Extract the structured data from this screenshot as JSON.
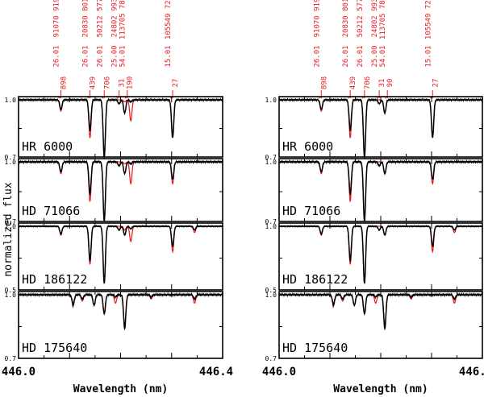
{
  "chart_data": {
    "type": "line",
    "y_axis_label": "normalized flux",
    "x_axis_label": "Wavelength (nm)",
    "x_range": [
      446.0,
      446.4
    ],
    "x_tick_labels": [
      "446.0",
      "446.4"
    ],
    "colors": {
      "observed": "#000000",
      "model": "#e8191c",
      "frame": "#000000"
    },
    "line_ids": [
      {
        "wavelength": 446.083,
        "species": "26.01",
        "code": "91070 919",
        "mult": "898"
      },
      {
        "wavelength": 446.14,
        "species": "26.01",
        "code": "20830 801",
        "mult": "439"
      },
      {
        "wavelength": 446.168,
        "species": "26.01",
        "code": "50212 577",
        "mult": "706"
      },
      {
        "wavelength": 446.197,
        "species": "25.00",
        "code": "24802 993",
        "mult": "31"
      },
      {
        "wavelength": 446.213,
        "species": "54.01",
        "code": "113705 782",
        "mult": "90",
        "mult_left": "190"
      },
      {
        "wavelength": 446.302,
        "species": "15.01",
        "code": "105549 727",
        "mult": "27"
      }
    ],
    "panels": [
      {
        "name": "left",
        "stars": [
          {
            "label": "HR 6000",
            "ylim": [
              0.7,
              1.0
            ],
            "y_tick_labels": [
              "1.0",
              "0.7"
            ],
            "lines": [
              {
                "w": 446.083,
                "d": 0.05,
                "md": 0.06
              },
              {
                "w": 446.14,
                "d": 0.16,
                "md": 0.2
              },
              {
                "w": 446.168,
                "d": 0.3,
                "md": 0.31
              },
              {
                "w": 446.197,
                "d": 0.02,
                "md": 0.0
              },
              {
                "w": 446.208,
                "d": 0.07,
                "md": 0.01
              },
              {
                "w": 446.22,
                "d": 0.01,
                "md": 0.11
              },
              {
                "w": 446.302,
                "d": 0.2,
                "md": 0.19
              }
            ]
          },
          {
            "label": "HD 71066",
            "ylim": [
              0.7,
              1.0
            ],
            "y_tick_labels": [
              "1.0",
              "0.7"
            ],
            "lines": [
              {
                "w": 446.083,
                "d": 0.05,
                "md": 0.06
              },
              {
                "w": 446.14,
                "d": 0.16,
                "md": 0.2
              },
              {
                "w": 446.168,
                "d": 0.3,
                "md": 0.3
              },
              {
                "w": 446.197,
                "d": 0.02,
                "md": 0.0
              },
              {
                "w": 446.208,
                "d": 0.06,
                "md": 0.01
              },
              {
                "w": 446.22,
                "d": 0.01,
                "md": 0.11
              },
              {
                "w": 446.302,
                "d": 0.09,
                "md": 0.11
              }
            ]
          },
          {
            "label": "HD 186122",
            "ylim": [
              0.5,
              1.0
            ],
            "y_tick_labels": [
              "1.0",
              "0.5"
            ],
            "lines": [
              {
                "w": 446.083,
                "d": 0.06,
                "md": 0.07
              },
              {
                "w": 446.14,
                "d": 0.27,
                "md": 0.3
              },
              {
                "w": 446.168,
                "d": 0.45,
                "md": 0.45
              },
              {
                "w": 446.197,
                "d": 0.03,
                "md": 0.0
              },
              {
                "w": 446.208,
                "d": 0.07,
                "md": 0.03
              },
              {
                "w": 446.22,
                "d": 0.02,
                "md": 0.12
              },
              {
                "w": 446.302,
                "d": 0.16,
                "md": 0.2
              },
              {
                "w": 446.345,
                "d": 0.03,
                "md": 0.05
              }
            ]
          },
          {
            "label": "HD 175640",
            "ylim": [
              0.7,
              1.0
            ],
            "y_tick_labels": [
              "1.0",
              "0.7"
            ],
            "lines": [
              {
                "w": 446.107,
                "d": 0.05,
                "md": 0.04
              },
              {
                "w": 446.125,
                "d": 0.02,
                "md": 0.03
              },
              {
                "w": 446.148,
                "d": 0.05,
                "md": 0.05
              },
              {
                "w": 446.168,
                "d": 0.09,
                "md": 0.09
              },
              {
                "w": 446.19,
                "d": 0.01,
                "md": 0.04
              },
              {
                "w": 446.208,
                "d": 0.16,
                "md": 0.15
              },
              {
                "w": 446.26,
                "d": 0.01,
                "md": 0.02
              },
              {
                "w": 446.345,
                "d": 0.02,
                "md": 0.04
              }
            ]
          }
        ]
      },
      {
        "name": "right",
        "stars": [
          {
            "label": "HR 6000",
            "ylim": [
              0.7,
              1.0
            ],
            "y_tick_labels": [
              "1.0",
              "0.7"
            ],
            "lines": [
              {
                "w": 446.083,
                "d": 0.05,
                "md": 0.06
              },
              {
                "w": 446.14,
                "d": 0.16,
                "md": 0.2
              },
              {
                "w": 446.168,
                "d": 0.3,
                "md": 0.31
              },
              {
                "w": 446.197,
                "d": 0.02,
                "md": 0.0
              },
              {
                "w": 446.208,
                "d": 0.07,
                "md": 0.07
              },
              {
                "w": 446.302,
                "d": 0.2,
                "md": 0.19
              }
            ]
          },
          {
            "label": "HD 71066",
            "ylim": [
              0.7,
              1.0
            ],
            "y_tick_labels": [
              "1.0",
              "0.7"
            ],
            "lines": [
              {
                "w": 446.083,
                "d": 0.05,
                "md": 0.06
              },
              {
                "w": 446.14,
                "d": 0.16,
                "md": 0.2
              },
              {
                "w": 446.168,
                "d": 0.3,
                "md": 0.3
              },
              {
                "w": 446.197,
                "d": 0.02,
                "md": 0.0
              },
              {
                "w": 446.208,
                "d": 0.06,
                "md": 0.06
              },
              {
                "w": 446.302,
                "d": 0.09,
                "md": 0.11
              }
            ]
          },
          {
            "label": "HD 186122",
            "ylim": [
              0.5,
              1.0
            ],
            "y_tick_labels": [
              "1.0",
              "0.5"
            ],
            "lines": [
              {
                "w": 446.083,
                "d": 0.06,
                "md": 0.07
              },
              {
                "w": 446.14,
                "d": 0.27,
                "md": 0.3
              },
              {
                "w": 446.168,
                "d": 0.45,
                "md": 0.45
              },
              {
                "w": 446.197,
                "d": 0.03,
                "md": 0.0
              },
              {
                "w": 446.208,
                "d": 0.07,
                "md": 0.07
              },
              {
                "w": 446.302,
                "d": 0.16,
                "md": 0.2
              },
              {
                "w": 446.345,
                "d": 0.03,
                "md": 0.05
              }
            ]
          },
          {
            "label": "HD 175640",
            "ylim": [
              0.7,
              1.0
            ],
            "y_tick_labels": [
              "1.0",
              "0.7"
            ],
            "lines": [
              {
                "w": 446.107,
                "d": 0.05,
                "md": 0.04
              },
              {
                "w": 446.125,
                "d": 0.02,
                "md": 0.03
              },
              {
                "w": 446.148,
                "d": 0.05,
                "md": 0.05
              },
              {
                "w": 446.168,
                "d": 0.09,
                "md": 0.09
              },
              {
                "w": 446.19,
                "d": 0.01,
                "md": 0.04
              },
              {
                "w": 446.208,
                "d": 0.16,
                "md": 0.15
              },
              {
                "w": 446.26,
                "d": 0.01,
                "md": 0.02
              },
              {
                "w": 446.345,
                "d": 0.02,
                "md": 0.04
              }
            ]
          }
        ]
      }
    ]
  }
}
